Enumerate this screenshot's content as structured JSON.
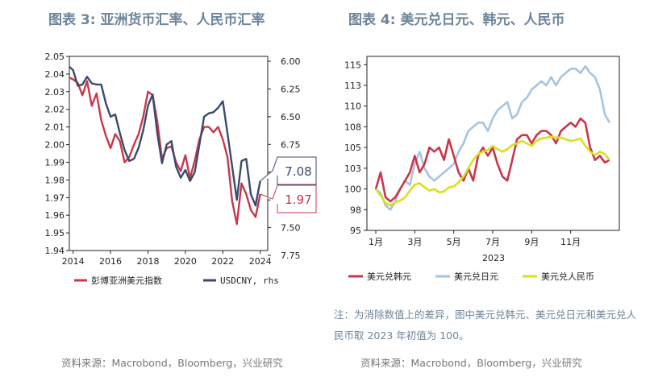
{
  "left_title": "图表 3: 亚洲货币汇率、人民币汇率",
  "right_title": "图表 4: 美元兑日元、韩元、人民币",
  "note": "注：为消除数值上的差异，图中美元兑韩元、美元兑日元和美元兑人民币取 2023 年初值为 100。",
  "source_left": "资料来源：Macrobond，Bloomberg，兴业研究",
  "source_right": "资料来源：Macrobond，Bloomberg，兴业研究",
  "colors": {
    "red": "#c8374b",
    "navy": "#3b4a6b",
    "lightblue": "#a7c4df",
    "yellow": "#dbe01e",
    "title": "#6e859b"
  },
  "chart_data": [
    {
      "type": "line",
      "title": "图表 3: 亚洲货币汇率、人民币汇率",
      "x": [
        2013.8,
        2014.0,
        2014.25,
        2014.5,
        2014.75,
        2015.0,
        2015.25,
        2015.5,
        2015.75,
        2016.0,
        2016.25,
        2016.5,
        2016.75,
        2017.0,
        2017.25,
        2017.5,
        2017.75,
        2018.0,
        2018.25,
        2018.5,
        2018.75,
        2019.0,
        2019.25,
        2019.5,
        2019.75,
        2020.0,
        2020.25,
        2020.5,
        2020.75,
        2021.0,
        2021.25,
        2021.5,
        2021.75,
        2022.0,
        2022.25,
        2022.5,
        2022.75,
        2023.0,
        2023.25,
        2023.5,
        2023.75,
        2024.0
      ],
      "x_ticks": [
        "2014",
        "2016",
        "2018",
        "2020",
        "2022",
        "2024"
      ],
      "x_tick_values": [
        2014,
        2016,
        2018,
        2020,
        2022,
        2024
      ],
      "series": [
        {
          "name": "彭博亚洲美元指数",
          "axis": "left",
          "color": "#c8374b",
          "values": [
            2.038,
            2.037,
            2.035,
            2.028,
            2.036,
            2.022,
            2.029,
            2.014,
            2.005,
            1.998,
            2.006,
            2.002,
            1.99,
            1.993,
            2.0,
            2.006,
            2.016,
            2.03,
            2.028,
            2.013,
            1.992,
            1.998,
            1.999,
            1.99,
            1.985,
            1.994,
            1.981,
            1.991,
            2.003,
            2.01,
            2.01,
            2.007,
            2.01,
            2.003,
            1.993,
            1.968,
            1.955,
            1.978,
            1.972,
            1.963,
            1.959,
            1.972
          ]
        },
        {
          "name": "USDCNY, rhs",
          "axis": "right",
          "color": "#3b4a6b",
          "values": [
            6.05,
            6.08,
            6.22,
            6.21,
            6.14,
            6.2,
            6.21,
            6.21,
            6.38,
            6.5,
            6.48,
            6.65,
            6.8,
            6.9,
            6.88,
            6.78,
            6.62,
            6.4,
            6.3,
            6.65,
            6.92,
            6.75,
            6.72,
            6.95,
            7.05,
            6.98,
            7.08,
            7.0,
            6.75,
            6.5,
            6.47,
            6.46,
            6.42,
            6.36,
            6.65,
            6.95,
            7.25,
            6.9,
            6.88,
            7.2,
            7.3,
            7.08
          ]
        }
      ],
      "y_left": {
        "min": 1.94,
        "max": 2.05,
        "ticks": [
          "1.94",
          "1.95",
          "1.96",
          "1.97",
          "1.98",
          "1.99",
          "2.00",
          "2.01",
          "2.02",
          "2.03",
          "2.04",
          "2.05"
        ]
      },
      "y_right": {
        "min": 6.0,
        "max": 7.75,
        "inverted": true,
        "ticks": [
          "6.00",
          "6.25",
          "6.50",
          "6.75",
          "7.00",
          "7.25",
          "7.50",
          "7.75"
        ],
        "tick_values": [
          6.0,
          6.25,
          6.5,
          6.75,
          7.0,
          7.25,
          7.5,
          7.75
        ]
      },
      "end_labels": [
        {
          "text": "7.08",
          "color": "#3b4a6b"
        },
        {
          "text": "1.97",
          "color": "#c8374b"
        }
      ],
      "legend": [
        "彭博亚洲美元指数",
        "USDCNY, rhs"
      ]
    },
    {
      "type": "line",
      "title": "图表 4: 美元兑日元、韩元、人民币",
      "x": [
        0,
        0.25,
        0.5,
        0.75,
        1.0,
        1.25,
        1.5,
        1.75,
        2.0,
        2.25,
        2.5,
        2.75,
        3.0,
        3.25,
        3.5,
        3.75,
        4.0,
        4.25,
        4.5,
        4.75,
        5.0,
        5.25,
        5.5,
        5.75,
        6.0,
        6.25,
        6.5,
        6.75,
        7.0,
        7.25,
        7.5,
        7.75,
        8.0,
        8.25,
        8.5,
        8.75,
        9.0,
        9.25,
        9.5,
        9.75,
        10.0,
        10.25,
        10.5,
        10.75,
        11.0,
        11.25,
        11.5,
        11.75,
        12.0
      ],
      "x_ticks": [
        "1月",
        "3月",
        "5月",
        "7月",
        "9月",
        "11月"
      ],
      "x_tick_values": [
        0,
        2,
        4,
        6,
        8,
        10
      ],
      "year_label": "2023",
      "series": [
        {
          "name": "美元兑韩元",
          "color": "#c8374b",
          "values": [
            100,
            102,
            99,
            98.5,
            99,
            100,
            101,
            102,
            104,
            102,
            103,
            105,
            104.5,
            105,
            103.5,
            106,
            104,
            102,
            101,
            102.5,
            101,
            104,
            105,
            104,
            105,
            103,
            101.5,
            101,
            103.5,
            106,
            106.5,
            106.5,
            105.5,
            106.5,
            107,
            107,
            106.5,
            105.5,
            107,
            107.5,
            108,
            107.5,
            108.5,
            108,
            105,
            103.5,
            104,
            103.2,
            103.5
          ]
        },
        {
          "name": "美元兑日元",
          "color": "#a7c4df",
          "values": [
            100,
            99.5,
            98,
            97.5,
            98.5,
            100,
            101,
            100.5,
            103,
            104.5,
            102.5,
            101.5,
            101,
            101.5,
            102,
            102.5,
            103,
            104.5,
            105.5,
            107,
            107.5,
            108,
            108,
            107,
            108.5,
            109.5,
            110,
            110.5,
            108.5,
            109,
            110.5,
            111,
            112,
            112.5,
            113,
            112.5,
            113.5,
            112.5,
            113.5,
            114,
            114.5,
            114.5,
            114,
            114.8,
            114,
            113.5,
            112,
            109,
            108
          ]
        },
        {
          "name": "美元兑人民币",
          "color": "#dbe01e",
          "values": [
            100,
            99.2,
            98.3,
            98,
            98.4,
            98.6,
            99,
            99.8,
            100.5,
            100.7,
            100.2,
            99.8,
            100,
            99.6,
            99.7,
            100.2,
            100.3,
            100.8,
            101.5,
            102.5,
            103.5,
            104.2,
            104.5,
            104.7,
            105.2,
            104.8,
            104.5,
            104.8,
            105.3,
            105.5,
            105.8,
            105.5,
            105.2,
            105.8,
            106.1,
            106.2,
            106.3,
            106.2,
            106.2,
            106,
            105.8,
            105.9,
            106.1,
            105.2,
            104.5,
            104.1,
            104.5,
            104.2,
            103.5
          ]
        }
      ],
      "y": {
        "min": 95,
        "max": 116,
        "ticks": [
          "95",
          "98",
          "100",
          "103",
          "105",
          "108",
          "110",
          "113",
          "115"
        ],
        "tick_values": [
          95,
          97.5,
          100,
          102.5,
          105,
          107.5,
          110,
          112.5,
          115
        ]
      },
      "legend": [
        "美元兑韩元",
        "美元兑日元",
        "美元兑人民币"
      ]
    }
  ]
}
